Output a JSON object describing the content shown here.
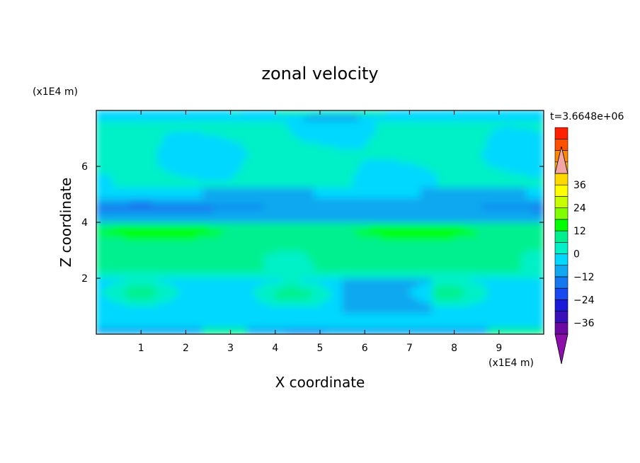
{
  "chart_data": {
    "type": "heatmap",
    "title": "zonal velocity",
    "xlabel": "X coordinate",
    "ylabel": "Z coordinate",
    "x_unit_label": "(x1E4 m)",
    "y_unit_label": "(x1E4 m)",
    "time_label": "t=3.6648e+06",
    "xlim": [
      0,
      10
    ],
    "ylim": [
      0,
      8
    ],
    "x_ticks": [
      1,
      2,
      3,
      4,
      5,
      6,
      7,
      8,
      9
    ],
    "y_ticks": [
      2,
      4,
      6
    ],
    "grid": false,
    "legend": "colorbar-right",
    "colorbar": {
      "min": -42,
      "max": 42,
      "step": 6,
      "tick_values": [
        36,
        24,
        12,
        0,
        -12,
        -24,
        -36
      ],
      "tick_labels": [
        "36",
        "24",
        "12",
        "0",
        "−12",
        "−24",
        "−36"
      ],
      "over_color": "#f4a6a6",
      "under_color": "#8b0fa8",
      "colors": [
        "#6a0aa0",
        "#3a10b8",
        "#1a1ad8",
        "#1848f0",
        "#1478f0",
        "#10a8f0",
        "#00d8ff",
        "#00f0c8",
        "#00f090",
        "#00ff00",
        "#80ff00",
        "#c8ff00",
        "#ffff00",
        "#ffd800",
        "#ffb000",
        "#ff8800",
        "#ff5000",
        "#ff2000"
      ]
    }
  }
}
